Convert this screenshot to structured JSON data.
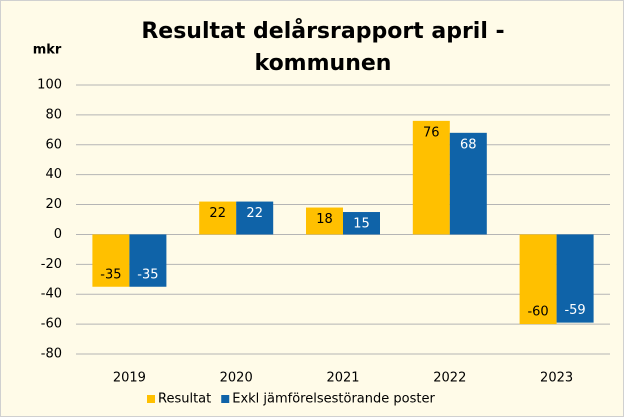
{
  "chart_data": {
    "type": "bar",
    "title": "Resultat delårsrapport april - kommunen",
    "y_label": "mkr",
    "categories": [
      "2019",
      "2020",
      "2021",
      "2022",
      "2023"
    ],
    "series": [
      {
        "name": "Resultat",
        "color": "#ffc000",
        "values": [
          -35,
          22,
          18,
          76,
          -60
        ]
      },
      {
        "name": "Exkl jämförelsestörande poster",
        "color": "#0f63a8",
        "values": [
          -35,
          22,
          15,
          68,
          -59
        ]
      }
    ],
    "ylim": [
      -80,
      100
    ],
    "yticks": [
      -80,
      -60,
      -40,
      -20,
      0,
      20,
      40,
      60,
      80,
      100
    ],
    "grid": true,
    "legend": "bottom"
  }
}
